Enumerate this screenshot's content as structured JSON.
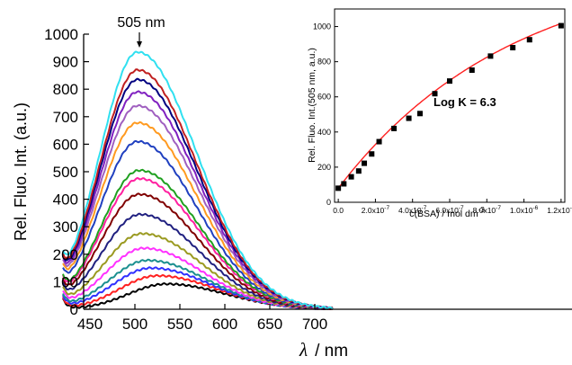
{
  "chart_data": [
    {
      "type": "line",
      "xlabel": "/ nm",
      "xlabel_symbol": "λ",
      "ylabel": "Rel. Fluo. Int. (a.u.)",
      "xlim": [
        420,
        720
      ],
      "ylim": [
        0,
        1000
      ],
      "xticks": [
        450,
        500,
        550,
        600,
        650,
        700
      ],
      "yticks": [
        0,
        100,
        200,
        300,
        400,
        500,
        600,
        700,
        800,
        900,
        1000
      ],
      "annotation": "505 nm",
      "annotation_x": 505,
      "grid": false,
      "shape": {
        "baseline_width": 42,
        "tail_width": 66
      },
      "series": [
        {
          "color": "#000000",
          "peak_x": 535,
          "peak": 92,
          "start": 35
        },
        {
          "color": "#ff2020",
          "peak_x": 525,
          "peak": 122,
          "start": 38
        },
        {
          "color": "#3030ff",
          "peak_x": 518,
          "peak": 150,
          "start": 42
        },
        {
          "color": "#1a8f8f",
          "peak_x": 514,
          "peak": 178,
          "start": 45
        },
        {
          "color": "#ff30ff",
          "peak_x": 510,
          "peak": 222,
          "start": 48
        },
        {
          "color": "#9a9a20",
          "peak_x": 508,
          "peak": 275,
          "start": 52
        },
        {
          "color": "#202080",
          "peak_x": 506,
          "peak": 345,
          "start": 55
        },
        {
          "color": "#800000",
          "peak_x": 505,
          "peak": 418,
          "start": 58
        },
        {
          "color": "#ff20a0",
          "peak_x": 505,
          "peak": 475,
          "start": 62
        },
        {
          "color": "#20a020",
          "peak_x": 505,
          "peak": 505,
          "start": 65
        },
        {
          "color": "#2040c0",
          "peak_x": 503,
          "peak": 610,
          "start": 68
        },
        {
          "color": "#ff9a20",
          "peak_x": 503,
          "peak": 678,
          "start": 72
        },
        {
          "color": "#a060c0",
          "peak_x": 503,
          "peak": 740,
          "start": 75
        },
        {
          "color": "#8020c0",
          "peak_x": 503,
          "peak": 790,
          "start": 78
        },
        {
          "color": "#000080",
          "peak_x": 503,
          "peak": 835,
          "start": 80
        },
        {
          "color": "#c02020",
          "peak_x": 503,
          "peak": 870,
          "start": 82
        },
        {
          "color": "#30e0f0",
          "peak_x": 503,
          "peak": 935,
          "start": 85
        }
      ]
    },
    {
      "type": "scatter",
      "xlabel": "c(BSA) / mol dm",
      "xlabel_sup": "-3",
      "ylabel": "Rel. Fluo. Int.(505 nm, a.u.)",
      "annotation": "Log K = 6.3",
      "xlim": [
        -2e-08,
        1.22e-06
      ],
      "ylim": [
        0,
        1100
      ],
      "xticks": [
        {
          "v": 0,
          "label": "0.0"
        },
        {
          "v": 2e-07,
          "label": "2.0x10",
          "sup": "-7"
        },
        {
          "v": 4e-07,
          "label": "4.0x10",
          "sup": "-7"
        },
        {
          "v": 6e-07,
          "label": "6.0x10",
          "sup": "-7"
        },
        {
          "v": 8e-07,
          "label": "8.0x10",
          "sup": "-7"
        },
        {
          "v": 1e-06,
          "label": "1.0x10",
          "sup": "-6"
        },
        {
          "v": 1.2e-06,
          "label": "1.2x10",
          "sup": "-6"
        }
      ],
      "yticks": [
        0,
        200,
        400,
        600,
        800,
        1000
      ],
      "fit_color": "#ff2020",
      "x": [
        0,
        3e-08,
        7e-08,
        1.1e-07,
        1.4e-07,
        1.8e-07,
        2.2e-07,
        3e-07,
        3.8e-07,
        4.4e-07,
        5.2e-07,
        6e-07,
        7.2e-07,
        8.2e-07,
        9.4e-07,
        1.03e-06,
        1.2e-06
      ],
      "y": [
        80,
        105,
        145,
        178,
        222,
        275,
        345,
        420,
        478,
        505,
        618,
        690,
        752,
        832,
        880,
        925,
        1005
      ]
    }
  ]
}
